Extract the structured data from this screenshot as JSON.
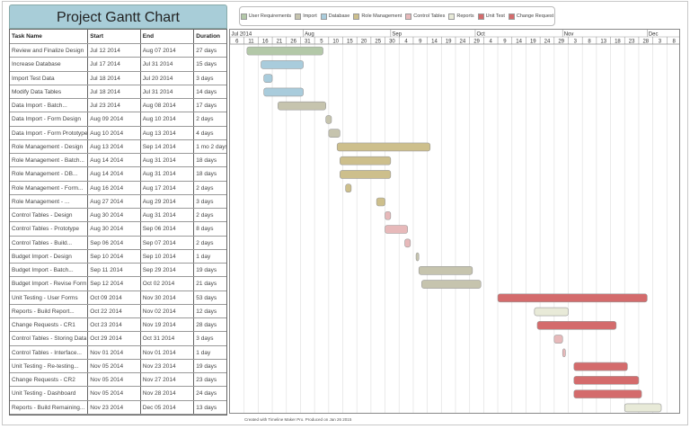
{
  "title": "Project Gantt Chart",
  "footer": "Created with Timeline Maker Pro. Produced on Jan 26 2015",
  "chart_data": {
    "type": "gantt",
    "title": "Project Gantt Chart",
    "columns": [
      "Task Name",
      "Start",
      "End",
      "Duration"
    ],
    "legend": [
      {
        "name": "User Requirements",
        "color": "#b3c8a8"
      },
      {
        "name": "Import",
        "color": "#c6c4ae"
      },
      {
        "name": "Database",
        "color": "#a9ccdc"
      },
      {
        "name": "Role Management",
        "color": "#cdbf8c"
      },
      {
        "name": "Control Tables",
        "color": "#e7b9ba"
      },
      {
        "name": "Reports",
        "color": "#e8ead8"
      },
      {
        "name": "Unit Test",
        "color": "#d46b6c"
      },
      {
        "name": "Change Request",
        "color": "#d46b6c"
      }
    ],
    "months": [
      "Jul 2014",
      "Aug",
      "Sep",
      "Oct",
      "Nov",
      "Dec"
    ],
    "x_range": [
      "2014-07-06",
      "2014-12-13"
    ],
    "tick_interval_days": 5,
    "tasks": [
      {
        "name": "Review and Finalize Design",
        "start": "Jul 12 2014",
        "end": "Aug 07 2014",
        "duration": "27 days",
        "category": "User Requirements"
      },
      {
        "name": "Increase Database",
        "start": "Jul 17 2014",
        "end": "Jul 31 2014",
        "duration": "15 days",
        "category": "Database"
      },
      {
        "name": "Import Test Data",
        "start": "Jul 18 2014",
        "end": "Jul 20 2014",
        "duration": "3 days",
        "category": "Database"
      },
      {
        "name": "Modify Data Tables",
        "start": "Jul 18 2014",
        "end": "Jul 31 2014",
        "duration": "14 days",
        "category": "Database"
      },
      {
        "name": "Data Import - Batch...",
        "start": "Jul 23 2014",
        "end": "Aug 08 2014",
        "duration": "17 days",
        "category": "Import"
      },
      {
        "name": "Data Import - Form Design",
        "start": "Aug 09 2014",
        "end": "Aug 10 2014",
        "duration": "2 days",
        "category": "Import"
      },
      {
        "name": "Data Import - Form Prototype",
        "start": "Aug 10 2014",
        "end": "Aug 13 2014",
        "duration": "4 days",
        "category": "Import"
      },
      {
        "name": "Role Management - Design",
        "start": "Aug 13 2014",
        "end": "Sep 14 2014",
        "duration": "1 mo 2 days",
        "category": "Role Management"
      },
      {
        "name": "Role Management - Batch...",
        "start": "Aug 14 2014",
        "end": "Aug 31 2014",
        "duration": "18 days",
        "category": "Role Management"
      },
      {
        "name": "Role Management - DB...",
        "start": "Aug 14 2014",
        "end": "Aug 31 2014",
        "duration": "18 days",
        "category": "Role Management"
      },
      {
        "name": "Role Management - Form...",
        "start": "Aug 16 2014",
        "end": "Aug 17 2014",
        "duration": "2 days",
        "category": "Role Management"
      },
      {
        "name": "Role Management - ...",
        "start": "Aug 27 2014",
        "end": "Aug 29 2014",
        "duration": "3 days",
        "category": "Role Management"
      },
      {
        "name": "Control Tables - Design",
        "start": "Aug 30 2014",
        "end": "Aug 31 2014",
        "duration": "2 days",
        "category": "Control Tables"
      },
      {
        "name": "Control Tables - Prototype",
        "start": "Aug 30 2014",
        "end": "Sep 06 2014",
        "duration": "8 days",
        "category": "Control Tables"
      },
      {
        "name": "Control Tables - Build...",
        "start": "Sep 06 2014",
        "end": "Sep 07 2014",
        "duration": "2 days",
        "category": "Control Tables"
      },
      {
        "name": "Budget Import - Design",
        "start": "Sep 10 2014",
        "end": "Sep 10 2014",
        "duration": "1 day",
        "category": "Import"
      },
      {
        "name": "Budget Import - Batch...",
        "start": "Sep 11 2014",
        "end": "Sep 29 2014",
        "duration": "19 days",
        "category": "Import"
      },
      {
        "name": "Budget Import - Revise Form",
        "start": "Sep 12 2014",
        "end": "Oct 02 2014",
        "duration": "21 days",
        "category": "Import"
      },
      {
        "name": "Unit Testing - User Forms",
        "start": "Oct 09 2014",
        "end": "Nov 30 2014",
        "duration": "53 days",
        "category": "Unit Test"
      },
      {
        "name": "Reports - Build Report...",
        "start": "Oct 22 2014",
        "end": "Nov 02 2014",
        "duration": "12 days",
        "category": "Reports"
      },
      {
        "name": "Change Requests - CR1",
        "start": "Oct 23 2014",
        "end": "Nov 19 2014",
        "duration": "28 days",
        "category": "Change Request"
      },
      {
        "name": "Control Tables - Storing Data",
        "start": "Oct 29 2014",
        "end": "Oct 31 2014",
        "duration": "3 days",
        "category": "Control Tables"
      },
      {
        "name": "Control Tables - Interface...",
        "start": "Nov 01 2014",
        "end": "Nov 01 2014",
        "duration": "1 day",
        "category": "Control Tables"
      },
      {
        "name": "Unit Testing - Re-testing...",
        "start": "Nov 05 2014",
        "end": "Nov 23 2014",
        "duration": "19 days",
        "category": "Unit Test"
      },
      {
        "name": "Change Requests - CR2",
        "start": "Nov 05 2014",
        "end": "Nov 27 2014",
        "duration": "23 days",
        "category": "Change Request"
      },
      {
        "name": "Unit Testing - Dashboard",
        "start": "Nov 05 2014",
        "end": "Nov 28 2014",
        "duration": "24 days",
        "category": "Unit Test"
      },
      {
        "name": "Reports - Build Remaining...",
        "start": "Nov 23 2014",
        "end": "Dec 05 2014",
        "duration": "13 days",
        "category": "Reports"
      }
    ]
  }
}
